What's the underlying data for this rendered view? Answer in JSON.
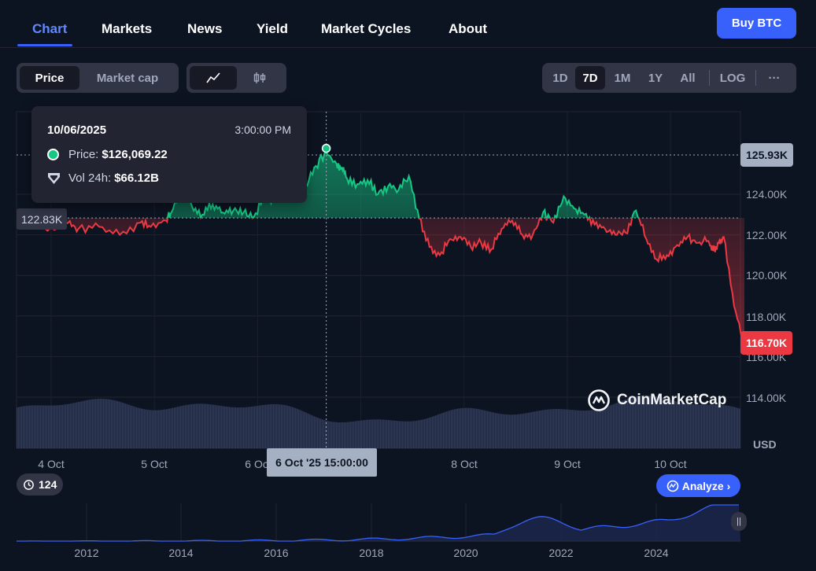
{
  "nav": {
    "tabs": [
      {
        "label": "Chart",
        "active": true
      },
      {
        "label": "Markets"
      },
      {
        "label": "News"
      },
      {
        "label": "Yield"
      },
      {
        "label": "Market Cycles"
      },
      {
        "label": "About"
      }
    ],
    "buy_label": "Buy BTC"
  },
  "toolbar": {
    "price_label": "Price",
    "marketcap_label": "Market cap",
    "ranges": [
      "1D",
      "7D",
      "1M",
      "1Y",
      "All"
    ],
    "active_range": "7D",
    "log_label": "LOG",
    "more_label": "···"
  },
  "tooltip": {
    "date": "10/06/2025",
    "time": "3:00:00 PM",
    "price_label": "Price:",
    "price_value": "$126,069.22",
    "vol_label": "Vol 24h:",
    "vol_value": "$66.12B"
  },
  "colors": {
    "up": "#16c784",
    "down": "#ea3943",
    "accent": "#3861fb",
    "bg": "#0d1421"
  },
  "chart_data": {
    "type": "line",
    "xlabel": "",
    "ylabel": "",
    "y_unit": "USD",
    "ylim": [
      114000,
      126000
    ],
    "yticks": [
      "124.00K",
      "122.00K",
      "120.00K",
      "118.00K",
      "116.00K",
      "114.00K"
    ],
    "xticks": [
      "4 Oct",
      "5 Oct",
      "6 Oct",
      "8 Oct",
      "9 Oct",
      "10 Oct"
    ],
    "reference_value": 122830,
    "reference_label": "122.83K",
    "current_label": "125.93K",
    "last_label": "116.70K",
    "hover_label": "6 Oct '25 15:00:00",
    "series": [
      {
        "x": [
          0.0,
          0.2,
          0.3,
          0.5,
          0.6,
          0.8,
          1.0,
          1.2,
          1.3,
          1.45,
          1.5,
          1.6,
          1.7,
          1.8,
          1.9,
          2.0,
          2.1,
          2.2,
          2.3,
          2.4,
          2.5,
          2.6,
          2.7,
          2.8,
          2.9,
          3.0,
          3.1,
          3.15,
          3.2,
          3.3,
          3.4,
          3.5,
          3.6,
          3.7,
          3.8,
          3.9,
          4.0,
          4.1,
          4.2,
          4.3,
          4.4,
          4.5,
          4.6,
          4.7,
          4.8,
          4.9,
          5.0,
          5.1,
          5.2,
          5.3,
          5.4,
          5.5,
          5.6,
          5.7,
          5.8,
          5.9,
          6.0,
          6.1,
          6.2,
          6.3,
          6.4,
          6.5,
          6.6,
          6.7,
          6.75,
          6.8,
          6.85,
          6.95,
          7.05
        ],
        "values": [
          122500,
          122900,
          122200,
          122600,
          122300,
          122400,
          122000,
          122600,
          122400,
          122700,
          123100,
          124200,
          123400,
          123000,
          123500,
          123100,
          123200,
          123100,
          122900,
          123900,
          123700,
          124400,
          124800,
          124400,
          125400,
          126069,
          125500,
          125300,
          124800,
          124500,
          124700,
          124000,
          124400,
          124200,
          124900,
          122800,
          121400,
          121000,
          121800,
          121900,
          121400,
          121600,
          121300,
          122300,
          122700,
          122000,
          122000,
          123100,
          122600,
          123900,
          123300,
          123000,
          122500,
          122300,
          122000,
          122100,
          123200,
          121800,
          120800,
          121000,
          121500,
          121900,
          121600,
          121700,
          121200,
          121600,
          121900,
          118500,
          116700
        ]
      }
    ],
    "overview": {
      "xticks": [
        "2012",
        "2014",
        "2016",
        "2018",
        "2020",
        "2022",
        "2024"
      ],
      "badge": "124",
      "analyze_label": "Analyze"
    },
    "watermark": "CoinMarketCap"
  }
}
